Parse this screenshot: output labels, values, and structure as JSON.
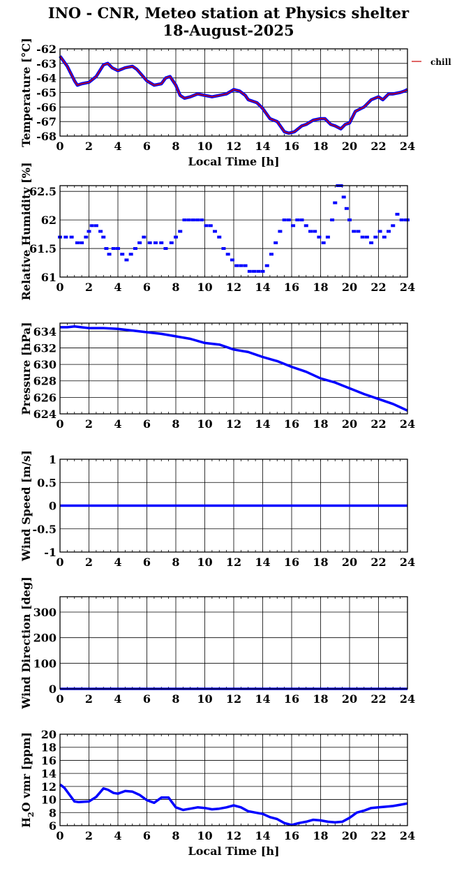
{
  "page": {
    "title_line1": "INO - CNR, Meteo station at Physics shelter",
    "title_line2": "18-August-2025"
  },
  "chart_data": [
    {
      "type": "line",
      "id": "temperature",
      "ylabel": "Temperature [°C]",
      "xlabel": "Local Time [h]",
      "xlim": [
        0,
        24
      ],
      "ylim": [
        -68,
        -62
      ],
      "xticks": [
        0,
        2,
        4,
        6,
        8,
        10,
        12,
        14,
        16,
        18,
        20,
        22,
        24
      ],
      "yticks": [
        -68,
        -67,
        -66,
        -65,
        -64,
        -63,
        -62
      ],
      "grid": true,
      "legend": {
        "placement": "right",
        "entries": [
          {
            "label": "chill",
            "color": "#cc0000"
          }
        ]
      },
      "series": [
        {
          "name": "chill",
          "color": "#cc0000",
          "outline_color": "#0000ff",
          "x": [
            0,
            0.5,
            1,
            1.2,
            1.5,
            2,
            2.5,
            3,
            3.3,
            3.6,
            4,
            4.5,
            5,
            5.3,
            6,
            6.5,
            7,
            7.3,
            7.6,
            8,
            8.3,
            8.6,
            9,
            9.5,
            10,
            10.5,
            11,
            11.5,
            12,
            12.4,
            12.8,
            13,
            13.6,
            14,
            14.5,
            15,
            15.5,
            15.8,
            16.2,
            16.7,
            17,
            17.5,
            18,
            18.3,
            18.7,
            19,
            19.4,
            19.7,
            20,
            20.4,
            20.8,
            21,
            21.5,
            22,
            22.3,
            22.7,
            23,
            23.5,
            23.8,
            24
          ],
          "y": [
            -62.5,
            -63.2,
            -64.2,
            -64.5,
            -64.4,
            -64.3,
            -63.9,
            -63.1,
            -63.0,
            -63.3,
            -63.5,
            -63.3,
            -63.2,
            -63.4,
            -64.2,
            -64.5,
            -64.4,
            -64.0,
            -63.9,
            -64.5,
            -65.2,
            -65.4,
            -65.3,
            -65.1,
            -65.2,
            -65.3,
            -65.2,
            -65.1,
            -64.8,
            -64.9,
            -65.2,
            -65.5,
            -65.7,
            -66.1,
            -66.8,
            -67.0,
            -67.7,
            -67.8,
            -67.7,
            -67.3,
            -67.2,
            -66.9,
            -66.8,
            -66.8,
            -67.2,
            -67.3,
            -67.5,
            -67.2,
            -67.1,
            -66.3,
            -66.1,
            -66.0,
            -65.5,
            -65.3,
            -65.5,
            -65.1,
            -65.1,
            -65.0,
            -64.9,
            -64.8
          ]
        }
      ]
    },
    {
      "type": "scatter",
      "id": "humidity",
      "ylabel": "Relative Humidity [%]",
      "xlim": [
        0,
        24
      ],
      "ylim": [
        61,
        62.6
      ],
      "xticks": [
        0,
        2,
        4,
        6,
        8,
        10,
        12,
        14,
        16,
        18,
        20,
        22,
        24
      ],
      "yticks": [
        61,
        61.5,
        62,
        62.5
      ],
      "grid": true,
      "series": [
        {
          "name": "",
          "color": "#0000ff",
          "x": [
            0,
            0.4,
            0.8,
            1.2,
            1.5,
            1.8,
            2.0,
            2.2,
            2.5,
            2.8,
            3.0,
            3.2,
            3.4,
            3.7,
            4.0,
            4.3,
            4.6,
            4.9,
            5.2,
            5.5,
            5.8,
            6.2,
            6.6,
            7.0,
            7.3,
            7.7,
            8.0,
            8.3,
            8.6,
            8.9,
            9.2,
            9.5,
            9.8,
            10.1,
            10.4,
            10.7,
            11.0,
            11.3,
            11.6,
            11.9,
            12.2,
            12.5,
            12.8,
            13.1,
            13.4,
            13.7,
            14.0,
            14.3,
            14.6,
            14.9,
            15.2,
            15.5,
            15.8,
            16.1,
            16.4,
            16.7,
            17.0,
            17.3,
            17.6,
            17.9,
            18.2,
            18.5,
            18.8,
            19.0,
            19.2,
            19.4,
            19.6,
            19.8,
            20.0,
            20.3,
            20.6,
            20.9,
            21.2,
            21.5,
            21.8,
            22.1,
            22.4,
            22.7,
            23.0,
            23.3,
            23.6,
            23.9,
            24.0
          ],
          "y": [
            61.7,
            61.7,
            61.7,
            61.6,
            61.6,
            61.7,
            61.8,
            61.9,
            61.9,
            61.8,
            61.7,
            61.5,
            61.4,
            61.5,
            61.5,
            61.4,
            61.3,
            61.4,
            61.5,
            61.6,
            61.7,
            61.6,
            61.6,
            61.6,
            61.5,
            61.6,
            61.7,
            61.8,
            62.0,
            62.0,
            62.0,
            62.0,
            62.0,
            61.9,
            61.9,
            61.8,
            61.7,
            61.5,
            61.4,
            61.3,
            61.2,
            61.2,
            61.2,
            61.1,
            61.1,
            61.1,
            61.1,
            61.2,
            61.4,
            61.6,
            61.8,
            62.0,
            62.0,
            61.9,
            62.0,
            62.0,
            61.9,
            61.8,
            61.8,
            61.7,
            61.6,
            61.7,
            62.0,
            62.3,
            62.6,
            62.6,
            62.4,
            62.2,
            62.0,
            61.8,
            61.8,
            61.7,
            61.7,
            61.6,
            61.7,
            61.8,
            61.7,
            61.8,
            61.9,
            62.1,
            62.0,
            62.0,
            62.0
          ]
        }
      ]
    },
    {
      "type": "line",
      "id": "pressure",
      "ylabel": "Pressure [hPa]",
      "xlim": [
        0,
        24
      ],
      "ylim": [
        624,
        635
      ],
      "xticks": [
        0,
        2,
        4,
        6,
        8,
        10,
        12,
        14,
        16,
        18,
        20,
        22,
        24
      ],
      "yticks": [
        624,
        626,
        628,
        630,
        632,
        634
      ],
      "grid": true,
      "series": [
        {
          "name": "",
          "color": "#0000ff",
          "x": [
            0,
            0.5,
            1,
            2,
            3,
            4,
            5,
            6,
            7,
            8,
            9,
            10,
            11,
            12,
            13,
            14,
            15,
            16,
            17,
            18,
            19,
            20,
            21,
            22,
            23,
            23.5,
            24
          ],
          "y": [
            634.5,
            634.5,
            634.6,
            634.4,
            634.4,
            634.3,
            634.1,
            633.9,
            633.7,
            633.4,
            633.1,
            632.6,
            632.4,
            631.8,
            631.5,
            630.9,
            630.4,
            629.7,
            629.1,
            628.3,
            627.8,
            627.1,
            626.4,
            625.8,
            625.2,
            624.8,
            624.4
          ]
        }
      ]
    },
    {
      "type": "line",
      "id": "wind_speed",
      "ylabel": "Wind Speed [m/s]",
      "xlim": [
        0,
        24
      ],
      "ylim": [
        -1,
        1
      ],
      "xticks": [
        0,
        2,
        4,
        6,
        8,
        10,
        12,
        14,
        16,
        18,
        20,
        22,
        24
      ],
      "yticks": [
        -1,
        -0.5,
        0,
        0.5,
        1
      ],
      "grid": true,
      "series": [
        {
          "name": "",
          "color": "#0000ff",
          "x": [
            0,
            24
          ],
          "y": [
            0,
            0
          ]
        }
      ]
    },
    {
      "type": "line",
      "id": "wind_direction",
      "ylabel": "Wind Direction [deg]",
      "xlim": [
        0,
        24
      ],
      "ylim": [
        0,
        360
      ],
      "xticks": [
        0,
        2,
        4,
        6,
        8,
        10,
        12,
        14,
        16,
        18,
        20,
        22,
        24
      ],
      "yticks": [
        0,
        100,
        200,
        300
      ],
      "grid": true,
      "series": [
        {
          "name": "",
          "color": "#0000ff",
          "x": [
            0,
            24
          ],
          "y": [
            0,
            0
          ]
        }
      ]
    },
    {
      "type": "line",
      "id": "h2o",
      "ylabel": "H2O vmr [ppm]",
      "xlabel": "Local Time [h]",
      "xlim": [
        0,
        24
      ],
      "ylim": [
        6,
        20
      ],
      "xticks": [
        0,
        2,
        4,
        6,
        8,
        10,
        12,
        14,
        16,
        18,
        20,
        22,
        24
      ],
      "yticks": [
        6,
        8,
        10,
        12,
        14,
        16,
        18,
        20
      ],
      "grid": true,
      "series": [
        {
          "name": "",
          "color": "#0000ff",
          "x": [
            0,
            0.3,
            0.6,
            1,
            1.3,
            2,
            2.5,
            3,
            3.3,
            3.7,
            4,
            4.5,
            5,
            5.5,
            6,
            6.5,
            7,
            7.5,
            8,
            8.5,
            9,
            9.5,
            10,
            10.5,
            11,
            11.5,
            12,
            12.5,
            13,
            13.5,
            14,
            14.5,
            15,
            15.5,
            16,
            16.5,
            17,
            17.5,
            18,
            18.5,
            19,
            19.5,
            20,
            20.5,
            21,
            21.5,
            22,
            22.5,
            23,
            23.5,
            24
          ],
          "y": [
            12.3,
            11.8,
            10.9,
            9.7,
            9.6,
            9.7,
            10.4,
            11.7,
            11.5,
            11.0,
            10.9,
            11.3,
            11.2,
            10.7,
            9.9,
            9.5,
            10.3,
            10.3,
            8.8,
            8.4,
            8.6,
            8.8,
            8.7,
            8.5,
            8.6,
            8.8,
            9.1,
            8.8,
            8.2,
            8.0,
            7.8,
            7.3,
            7.0,
            6.4,
            6.1,
            6.4,
            6.6,
            6.9,
            6.8,
            6.6,
            6.5,
            6.6,
            7.2,
            8.0,
            8.3,
            8.7,
            8.8,
            8.9,
            9.0,
            9.2,
            9.4
          ]
        }
      ]
    }
  ]
}
